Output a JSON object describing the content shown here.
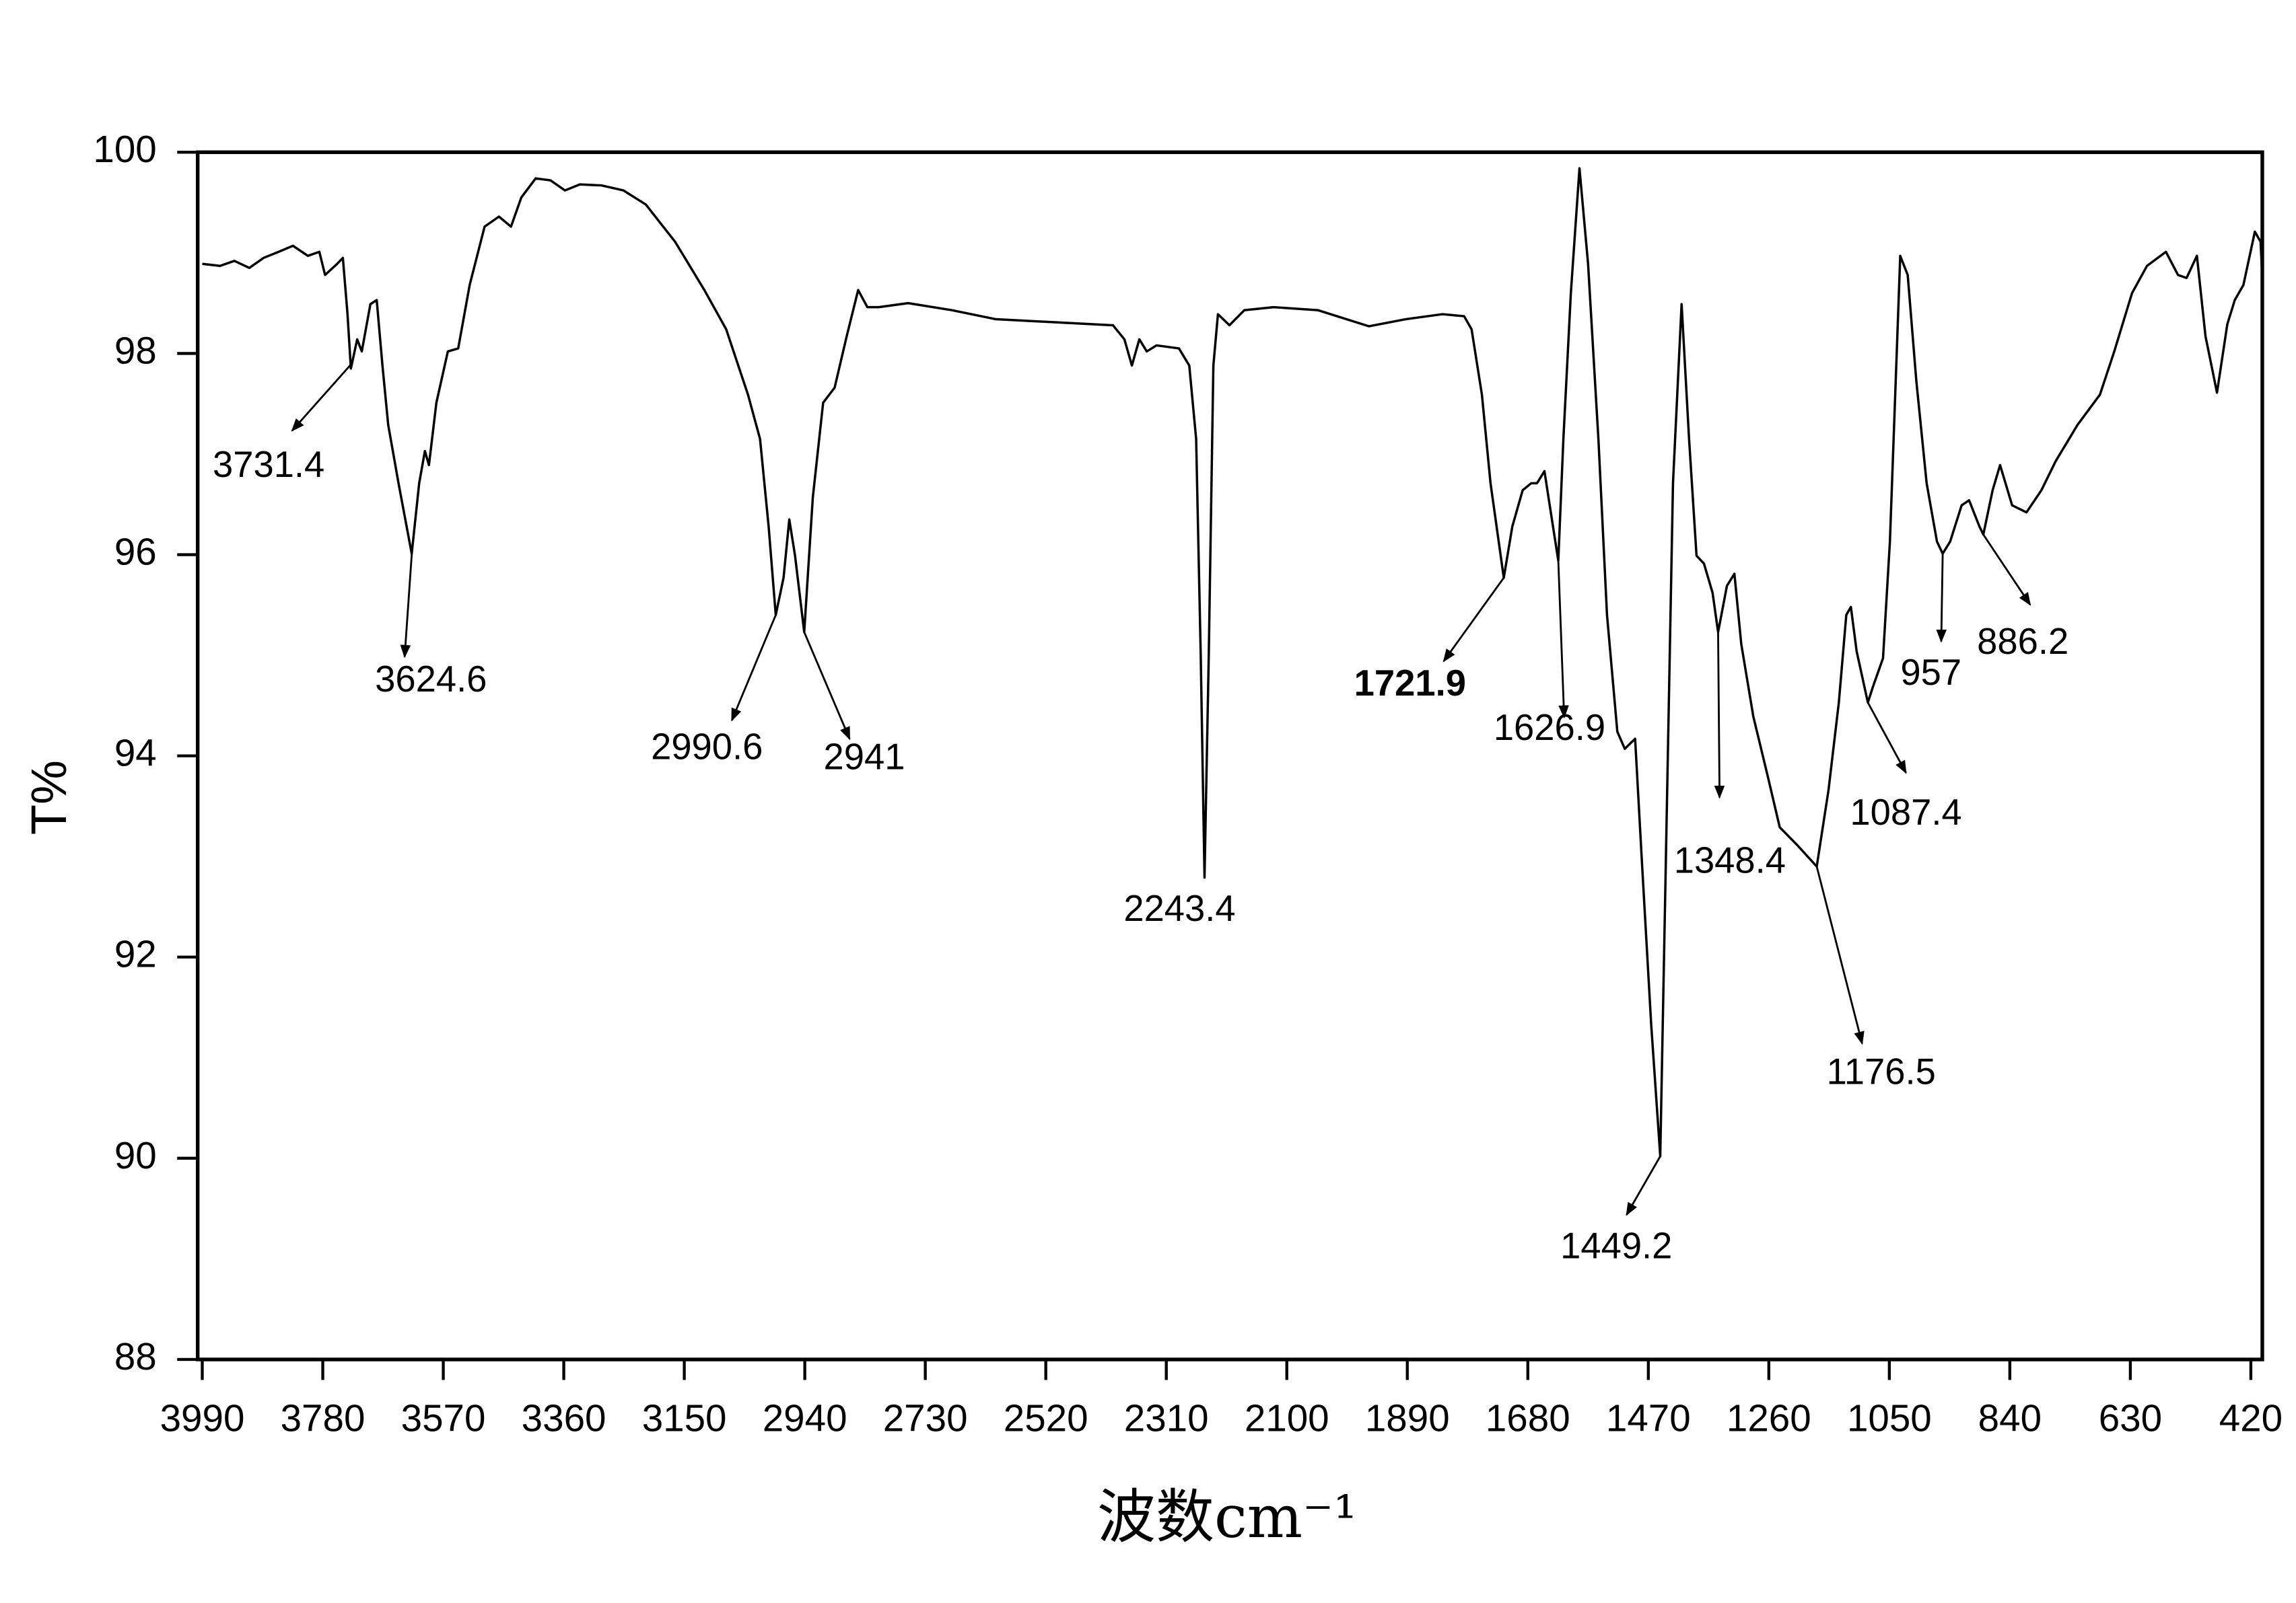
{
  "chart_data": {
    "type": "line",
    "xlabel": "波数cm⁻¹",
    "ylabel": "T%",
    "xlim": [
      3998,
      400
    ],
    "ylim": [
      88,
      100
    ],
    "xticks": [
      3990,
      3780,
      3570,
      3360,
      3150,
      2940,
      2730,
      2520,
      2310,
      2100,
      1890,
      1680,
      1470,
      1260,
      1050,
      840,
      630,
      420
    ],
    "yticks": [
      88,
      90,
      92,
      94,
      96,
      98,
      100
    ],
    "color": "#000000",
    "x": [
      3990,
      3959,
      3934,
      3908,
      3883,
      3857,
      3832,
      3806,
      3786,
      3776,
      3755,
      3745,
      3737,
      3731,
      3720,
      3712,
      3697,
      3686,
      3676,
      3666,
      3648,
      3625,
      3612,
      3602,
      3595,
      3582,
      3562,
      3544,
      3524,
      3498,
      3473,
      3452,
      3434,
      3409,
      3383,
      3358,
      3332,
      3294,
      3256,
      3217,
      3166,
      3115,
      3077,
      3039,
      3018,
      3003,
      2990.6,
      2977,
      2967,
      2957,
      2941,
      2926,
      2908,
      2888,
      2867,
      2847,
      2831,
      2811,
      2760,
      2684,
      2607,
      2505,
      2403,
      2383,
      2370,
      2357,
      2344,
      2327,
      2288,
      2270,
      2258,
      2250,
      2243.4,
      2236,
      2228,
      2220,
      2200,
      2174,
      2123,
      2046,
      1957,
      1893,
      1829,
      1791,
      1778,
      1760,
      1745,
      1721.9,
      1707,
      1689,
      1674,
      1664,
      1651,
      1644,
      1626.9,
      1618,
      1605,
      1590,
      1575,
      1557,
      1542,
      1524,
      1511,
      1493,
      1481,
      1465,
      1449.2,
      1440,
      1427,
      1412,
      1399,
      1386,
      1373,
      1358,
      1348.4,
      1333,
      1320,
      1308,
      1287,
      1262,
      1241,
      1210,
      1176.5,
      1156,
      1138,
      1125,
      1117,
      1107,
      1087.4,
      1079,
      1061,
      1049,
      1031,
      1018,
      1003,
      985,
      967,
      957,
      944,
      924,
      911,
      893,
      886.2,
      870,
      857,
      836,
      811,
      785,
      760,
      722,
      683,
      658,
      627,
      601,
      568,
      547,
      532,
      514,
      499,
      479,
      461,
      448,
      433,
      413,
      403,
      400
    ],
    "values": [
      98.89,
      98.87,
      98.92,
      98.85,
      98.95,
      99.01,
      99.07,
      98.97,
      99.01,
      98.78,
      98.89,
      98.95,
      98.4,
      97.85,
      98.14,
      98.02,
      98.49,
      98.53,
      97.88,
      97.29,
      96.71,
      96.01,
      96.71,
      97.03,
      96.89,
      97.51,
      98.02,
      98.05,
      98.68,
      99.26,
      99.36,
      99.26,
      99.55,
      99.74,
      99.72,
      99.62,
      99.68,
      99.67,
      99.62,
      99.48,
      99.11,
      98.63,
      98.24,
      97.59,
      97.15,
      96.28,
      95.4,
      95.77,
      96.35,
      95.99,
      95.23,
      96.57,
      97.51,
      97.66,
      98.17,
      98.63,
      98.46,
      98.46,
      98.5,
      98.43,
      98.34,
      98.31,
      98.28,
      98.14,
      97.88,
      98.14,
      98.02,
      98.08,
      98.05,
      97.88,
      97.15,
      95.0,
      92.79,
      95.0,
      97.88,
      98.39,
      98.28,
      98.43,
      98.46,
      98.43,
      98.27,
      98.34,
      98.39,
      98.37,
      98.24,
      97.59,
      96.71,
      95.77,
      96.28,
      96.64,
      96.71,
      96.71,
      96.83,
      96.57,
      95.94,
      97.15,
      98.6,
      99.84,
      98.89,
      97.15,
      95.4,
      94.24,
      94.07,
      94.17,
      92.93,
      91.33,
      90.02,
      92.79,
      96.71,
      98.49,
      97.15,
      95.99,
      95.91,
      95.62,
      95.23,
      95.69,
      95.81,
      95.11,
      94.39,
      93.8,
      93.29,
      93.11,
      92.9,
      93.66,
      94.53,
      95.4,
      95.48,
      95.04,
      94.53,
      94.68,
      94.97,
      96.13,
      98.97,
      98.78,
      97.73,
      96.71,
      96.13,
      96.01,
      96.13,
      96.49,
      96.54,
      96.28,
      96.2,
      96.64,
      96.89,
      96.49,
      96.42,
      96.64,
      96.93,
      97.29,
      97.59,
      98.02,
      98.6,
      98.87,
      99.01,
      98.78,
      98.75,
      98.97,
      98.17,
      97.61,
      98.29,
      98.53,
      98.68,
      99.21,
      99.11,
      98.75
    ],
    "annotations": [
      3731.4,
      3624.6,
      2990.6,
      2941,
      2243.4,
      1721.9,
      1626.9,
      1449.2,
      1348.4,
      1176.5,
      1087.4,
      957,
      886.2
    ]
  }
}
